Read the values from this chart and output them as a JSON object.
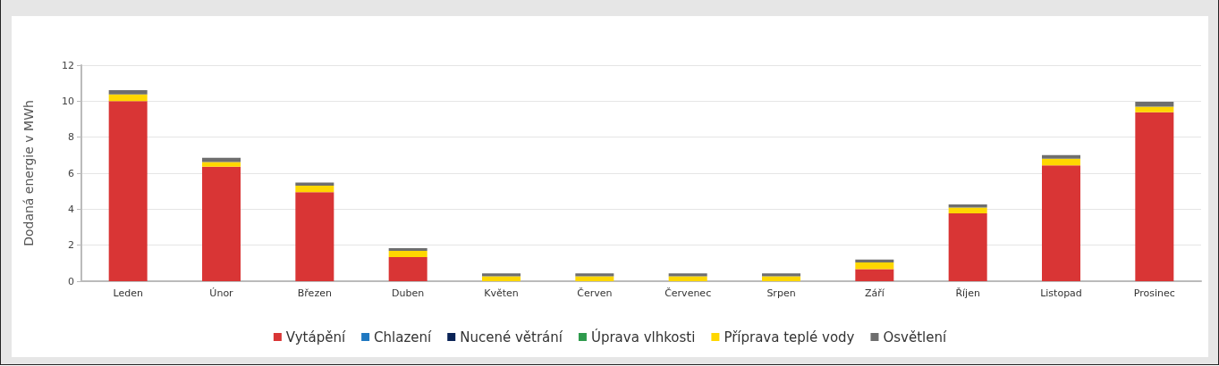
{
  "chart_data": {
    "type": "bar",
    "stacked": true,
    "ylabel": "Dodaná energie v MWh",
    "categories": [
      "Leden",
      "Únor",
      "Březen",
      "Duben",
      "Květen",
      "Červen",
      "Červenec",
      "Srpen",
      "Září",
      "Říjen",
      "Listopad",
      "Prosinec"
    ],
    "series": [
      {
        "name": "Vytápění",
        "color": "#d93535",
        "values": [
          10.0,
          6.36,
          4.95,
          1.34,
          0,
          0,
          0,
          0,
          0.67,
          3.77,
          6.43,
          9.39
        ]
      },
      {
        "name": "Chlazení",
        "color": "#1f78c1",
        "values": [
          0,
          0,
          0,
          0,
          0,
          0,
          0,
          0,
          0,
          0,
          0,
          0
        ]
      },
      {
        "name": "Nucené větrání",
        "color": "#0a2356",
        "values": [
          0,
          0,
          0,
          0,
          0,
          0,
          0,
          0,
          0,
          0,
          0,
          0
        ]
      },
      {
        "name": "Úprava vlhkosti",
        "color": "#2e9a4c",
        "values": [
          0,
          0,
          0,
          0,
          0,
          0,
          0,
          0,
          0,
          0,
          0,
          0
        ]
      },
      {
        "name": "Příprava teplé vody",
        "color": "#ffd700",
        "values": [
          0.37,
          0.26,
          0.36,
          0.34,
          0.27,
          0.27,
          0.27,
          0.27,
          0.37,
          0.32,
          0.38,
          0.31
        ]
      },
      {
        "name": "Osvětlení",
        "color": "#6e6e6e",
        "values": [
          0.24,
          0.24,
          0.17,
          0.15,
          0.17,
          0.17,
          0.17,
          0.17,
          0.16,
          0.17,
          0.19,
          0.27
        ]
      }
    ],
    "ylim": [
      0,
      12
    ],
    "yticks": [
      0,
      2,
      4,
      6,
      8,
      10,
      12
    ],
    "grid": "y",
    "legend": "bottom"
  }
}
